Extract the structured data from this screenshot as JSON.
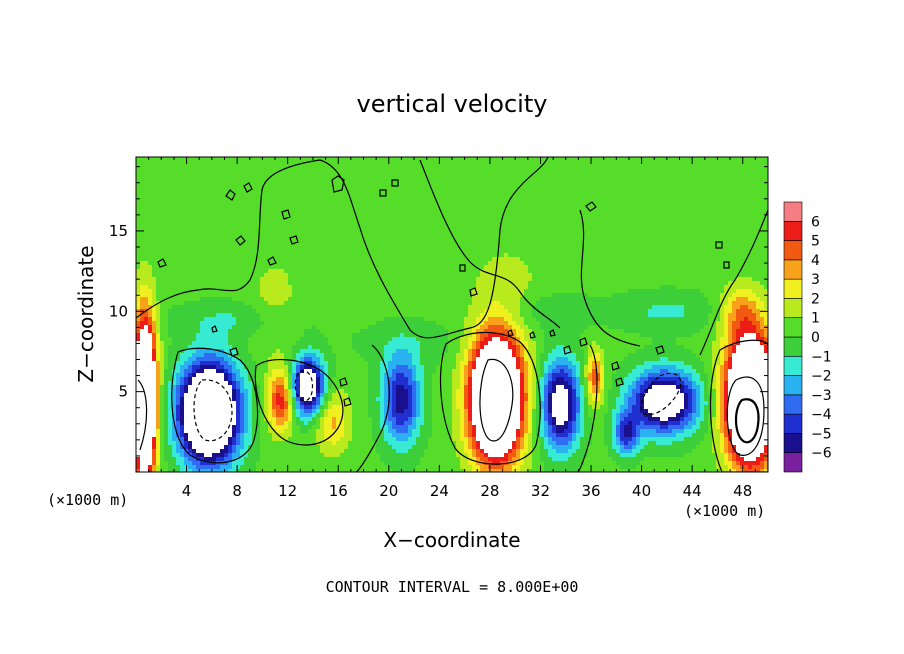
{
  "chart_data": {
    "type": "heatmap",
    "title": "vertical velocity",
    "xlabel": "X−coordinate",
    "ylabel": "Z−coordinate",
    "x_unit": "(×1000 m)",
    "xlim": [
      0,
      50
    ],
    "ylim": [
      0,
      19.6
    ],
    "x_ticks": [
      4,
      8,
      12,
      16,
      20,
      24,
      28,
      32,
      36,
      40,
      44,
      48
    ],
    "y_ticks": [
      5,
      10,
      15
    ],
    "colorbar": {
      "ticks": [
        6,
        5,
        4,
        3,
        2,
        1,
        0,
        -1,
        -2,
        -3,
        -4,
        -5,
        -6
      ],
      "tick_labels": [
        "6",
        "5",
        "4",
        "3",
        "2",
        "1",
        "0",
        "−1",
        "−2",
        "−3",
        "−4",
        "−5",
        "−6"
      ],
      "colors": [
        "#7a1f9e",
        "#1a0f8c",
        "#1f2fd0",
        "#2f6cf2",
        "#2ab2f0",
        "#37ead2",
        "#3ccf3a",
        "#55dd2a",
        "#b9ea1e",
        "#f0f020",
        "#f7a21a",
        "#f25a12",
        "#ec1c18",
        "#f47e84"
      ]
    },
    "background_value": 0.3,
    "cells": [
      {
        "x": 0.7,
        "z": 4.5,
        "sx": 0.9,
        "sz": 5.0,
        "v": 14
      },
      {
        "x": 5.8,
        "z": 3.7,
        "sx": 2.3,
        "sz": 3.0,
        "v": -14
      },
      {
        "x": 11.5,
        "z": 4.5,
        "sx": 1.1,
        "sz": 1.9,
        "v": 5.5
      },
      {
        "x": 13.6,
        "z": 5.3,
        "sx": 1.3,
        "sz": 1.8,
        "v": -9
      },
      {
        "x": 15.5,
        "z": 3.2,
        "sx": 1.4,
        "sz": 1.9,
        "v": 3
      },
      {
        "x": 21.0,
        "z": 4.5,
        "sx": 1.5,
        "sz": 2.7,
        "v": -6
      },
      {
        "x": 28.5,
        "z": 4.6,
        "sx": 2.1,
        "sz": 3.9,
        "v": 14
      },
      {
        "x": 33.6,
        "z": 4.2,
        "sx": 1.5,
        "sz": 2.7,
        "v": -8
      },
      {
        "x": 36.3,
        "z": 5.8,
        "sx": 0.7,
        "sz": 1.7,
        "v": 4.5
      },
      {
        "x": 41.8,
        "z": 4.4,
        "sx": 2.6,
        "sz": 1.9,
        "v": -9
      },
      {
        "x": 38.8,
        "z": 2.4,
        "sx": 1.0,
        "sz": 1.3,
        "v": -5
      },
      {
        "x": 48.6,
        "z": 4.5,
        "sx": 1.9,
        "sz": 3.9,
        "v": 15
      },
      {
        "x": 11.0,
        "z": 10.5,
        "sx": 2.0,
        "sz": 3.0,
        "v": 1.2
      },
      {
        "x": 29.5,
        "z": 11.5,
        "sx": 3.0,
        "sz": 3.0,
        "v": 1.0
      },
      {
        "x": 47.8,
        "z": 10.0,
        "sx": 1.6,
        "sz": 1.6,
        "v": 2.5
      },
      {
        "x": 8.0,
        "z": 9.5,
        "sx": 5.0,
        "sz": 1.1,
        "v": -1.3
      },
      {
        "x": 32.0,
        "z": 10.0,
        "sx": 4.0,
        "sz": 1.2,
        "v": -1.2
      },
      {
        "x": 42.0,
        "z": 10.0,
        "sx": 4.0,
        "sz": 1.2,
        "v": -1.5
      },
      {
        "x": 22.0,
        "z": 8.0,
        "sx": 5.0,
        "sz": 1.4,
        "v": -0.8
      }
    ]
  },
  "footer": {
    "contour_interval_text": "CONTOUR INTERVAL = 8.000E+00"
  }
}
